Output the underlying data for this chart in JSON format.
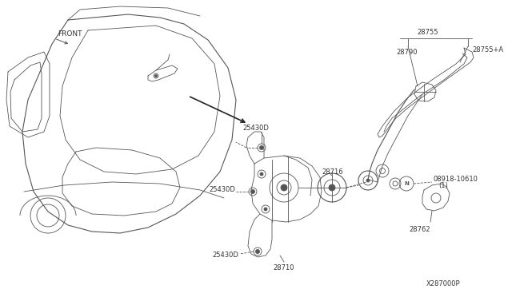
{
  "bg_color": "#ffffff",
  "line_color": "#555555",
  "label_color": "#333333",
  "fig_width": 6.4,
  "fig_height": 3.72,
  "dpi": 100,
  "labels": {
    "front": "FRONT",
    "part_28755": "28755",
    "part_28790": "28790",
    "part_28755A": "28755+A",
    "part_25430D_top": "25430D",
    "part_25430D_mid": "25430D",
    "part_25430D_bot": "25430D",
    "part_28716": "28716",
    "part_28710": "28710",
    "part_08918": "08918-10610",
    "part_08918_sub": "(1)",
    "part_28762": "28762",
    "part_X287000P": "X287000P"
  },
  "label_fontsize": 6.0
}
